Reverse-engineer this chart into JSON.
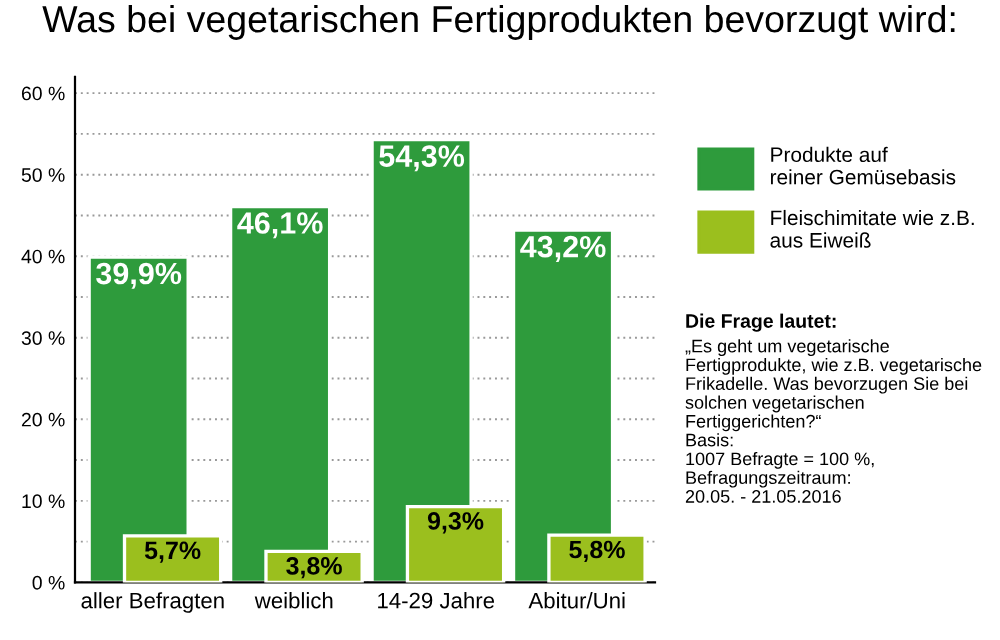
{
  "chart_data": {
    "type": "bar",
    "title": "Was bei vegetarischen Fertigprodukten bevorzugt wird:",
    "categories": [
      "aller Befragten",
      "weiblich",
      "14-29 Jahre",
      "Abitur/Uni"
    ],
    "series": [
      {
        "name": "Produkte auf reiner Gemüsebasis",
        "color": "#2e9b3c",
        "values": [
          39.9,
          46.1,
          54.3,
          43.2
        ],
        "value_labels": [
          "39,9%",
          "46,1%",
          "54,3%",
          "43,2%"
        ]
      },
      {
        "name": "Fleischimitate wie z.B. aus Eiweiß",
        "color": "#9bbf1e",
        "values": [
          5.7,
          3.8,
          9.3,
          5.8
        ],
        "value_labels": [
          "5,7%",
          "3,8%",
          "9,3%",
          "5,8%"
        ]
      }
    ],
    "ylim": [
      0,
      62
    ],
    "yticks": [
      {
        "value": 0,
        "label": "0 %"
      },
      {
        "value": 5,
        "label": null
      },
      {
        "value": 10,
        "label": "10 %"
      },
      {
        "value": 15,
        "label": null
      },
      {
        "value": 20,
        "label": "20 %"
      },
      {
        "value": 25,
        "label": null
      },
      {
        "value": 30,
        "label": "30 %"
      },
      {
        "value": 35,
        "label": null
      },
      {
        "value": 40,
        "label": "40 %"
      },
      {
        "value": 45,
        "label": null
      },
      {
        "value": 50,
        "label": "50 %"
      },
      {
        "value": 55,
        "label": null
      },
      {
        "value": 60,
        "label": "60 %"
      }
    ],
    "grid": "y",
    "legend": "right",
    "annotations": [
      "Die Frage lautet:",
      "„Es geht um vegetarische Fertigprodukte, wie z.B. vegetarische Frikadelle. Was bevorzugen Sie bei solchen vegetarischen Fertiggerichten?“\nBasis:\n1007 Befragte = 100 %,\nBefragungszeitraum:\n20.05. - 21.05.2016"
    ]
  }
}
